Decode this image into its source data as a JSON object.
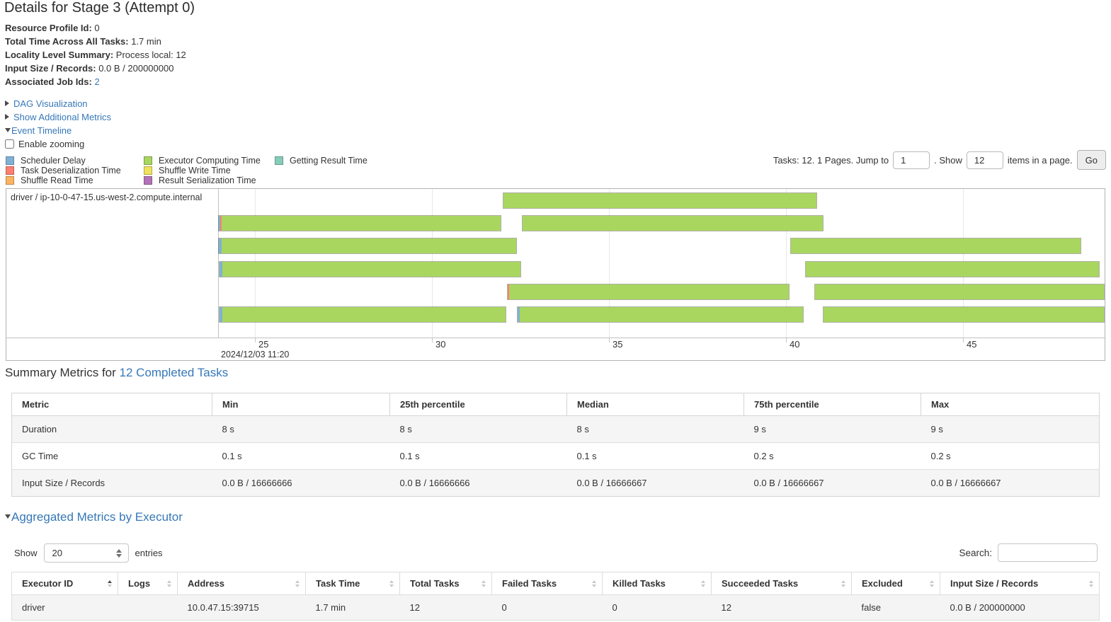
{
  "page": {
    "title": "Details for Stage 3 (Attempt 0)"
  },
  "info": [
    {
      "label": "Resource Profile Id:",
      "value": "0"
    },
    {
      "label": "Total Time Across All Tasks:",
      "value": "1.7 min"
    },
    {
      "label": "Locality Level Summary:",
      "value": "Process local: 12"
    },
    {
      "label": "Input Size / Records:",
      "value": "0.0 B / 200000000"
    },
    {
      "label": "Associated Job Ids:",
      "value": "",
      "link": "2"
    }
  ],
  "toggles": {
    "dag_visualization": "DAG Visualization",
    "additional_metrics": "Show Additional Metrics",
    "event_timeline": "Event Timeline",
    "enable_zooming": "Enable zooming"
  },
  "palette": {
    "scheduler_delay": "#80B1D3",
    "task_deserialization": "#FB8072",
    "shuffle_read": "#FDB462",
    "executor_computing": "#A8D65F",
    "shuffle_write": "#EFE25E",
    "result_serialization": "#B373B8",
    "getting_result": "#85CDB8"
  },
  "legend": [
    {
      "label": "Scheduler Delay",
      "key": "scheduler_delay",
      "col": 0,
      "row": 0
    },
    {
      "label": "Task Deserialization Time",
      "key": "task_deserialization",
      "col": 0,
      "row": 1
    },
    {
      "label": "Shuffle Read Time",
      "key": "shuffle_read",
      "col": 0,
      "row": 2
    },
    {
      "label": "Executor Computing Time",
      "key": "executor_computing",
      "col": 1,
      "row": 0
    },
    {
      "label": "Shuffle Write Time",
      "key": "shuffle_write",
      "col": 1,
      "row": 1
    },
    {
      "label": "Result Serialization Time",
      "key": "result_serialization",
      "col": 1,
      "row": 2
    },
    {
      "label": "Getting Result Time",
      "key": "getting_result",
      "col": 2,
      "row": 0
    }
  ],
  "pagination": {
    "tasks_text": "Tasks: 12. 1 Pages. Jump to",
    "jump_value": "1",
    "show_text": ". Show",
    "show_value": "12",
    "items_text": "items in a page.",
    "go_label": "Go"
  },
  "timeline": {
    "executor_label": "driver / ip-10-0-47-15.us-west-2.compute.internal",
    "date_label": "2024/12/03 11:20",
    "tick_labels": [
      "25",
      "30",
      "35",
      "40",
      "45"
    ],
    "bars": [
      {
        "row": 0,
        "start": 32.0,
        "end": 40.88,
        "slivers": []
      },
      {
        "row": 1,
        "start": 23.96,
        "end": 31.96,
        "slivers": [
          {
            "key": "scheduler_delay",
            "sec": 0.04
          },
          {
            "key": "task_deserialization",
            "sec": 0.04
          }
        ]
      },
      {
        "row": 1,
        "start": 32.54,
        "end": 41.06,
        "slivers": []
      },
      {
        "row": 2,
        "start": 23.96,
        "end": 32.4,
        "slivers": [
          {
            "key": "scheduler_delay",
            "sec": 0.08
          }
        ]
      },
      {
        "row": 2,
        "start": 40.12,
        "end": 48.34,
        "slivers": []
      },
      {
        "row": 3,
        "start": 23.98,
        "end": 32.52,
        "slivers": [
          {
            "key": "scheduler_delay",
            "sec": 0.08
          }
        ]
      },
      {
        "row": 3,
        "start": 40.54,
        "end": 48.86,
        "slivers": []
      },
      {
        "row": 4,
        "start": 32.12,
        "end": 40.1,
        "slivers": [
          {
            "key": "task_deserialization",
            "sec": 0.04
          }
        ]
      },
      {
        "row": 4,
        "start": 40.8,
        "end": 49.0,
        "slivers": []
      },
      {
        "row": 5,
        "start": 23.98,
        "end": 32.1,
        "slivers": [
          {
            "key": "scheduler_delay",
            "sec": 0.08
          }
        ]
      },
      {
        "row": 5,
        "start": 32.4,
        "end": 40.5,
        "slivers": [
          {
            "key": "scheduler_delay",
            "sec": 0.06
          }
        ]
      },
      {
        "row": 5,
        "start": 41.04,
        "end": 49.0,
        "slivers": []
      }
    ]
  },
  "summary": {
    "heading": "Summary Metrics for",
    "heading_link": "12 Completed Tasks",
    "headers": [
      "Metric",
      "Min",
      "25th percentile",
      "Median",
      "75th percentile",
      "Max"
    ],
    "rows": [
      [
        "Duration",
        "8 s",
        "8 s",
        "8 s",
        "9 s",
        "9 s"
      ],
      [
        "GC Time",
        "0.1 s",
        "0.1 s",
        "0.1 s",
        "0.2 s",
        "0.2 s"
      ],
      [
        "Input Size / Records",
        "0.0 B / 16666666",
        "0.0 B / 16666666",
        "0.0 B / 16666667",
        "0.0 B / 16666667",
        "0.0 B / 16666667"
      ]
    ]
  },
  "aggregated": {
    "heading": "Aggregated Metrics by Executor",
    "show_label": "Show",
    "entries_value": "20",
    "entries_label": "entries",
    "search_label": "Search:",
    "search_value": "",
    "headers": [
      "Executor ID",
      "Logs",
      "Address",
      "Task Time",
      "Total Tasks",
      "Failed Tasks",
      "Killed Tasks",
      "Succeeded Tasks",
      "Excluded",
      "Input Size / Records"
    ],
    "sorted_column": 0,
    "rows": [
      [
        "driver",
        "",
        "10.0.47.15:39715",
        "1.7 min",
        "12",
        "0",
        "0",
        "12",
        "false",
        "0.0 B / 200000000"
      ]
    ]
  }
}
